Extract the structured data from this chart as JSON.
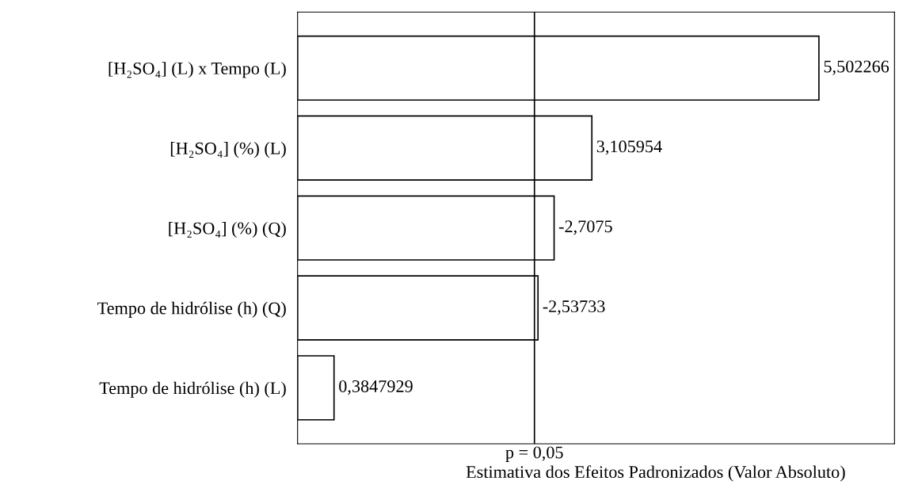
{
  "chart_data": {
    "type": "bar",
    "orientation": "horizontal",
    "xlabel": "Estimativa dos Efeitos Padronizados (Valor Absoluto)",
    "categories": [
      "[H₂SO₄] (L) x Tempo (L)",
      "[H₂SO₄] (%) (L)",
      "[H₂SO₄] (%) (Q)",
      "Tempo de hidrólise (h) (Q)",
      "Tempo de hidrólise (h) (L)"
    ],
    "values": [
      5.502266,
      3.105954,
      2.7075,
      2.53733,
      0.3847929
    ],
    "value_labels": [
      "5,502266",
      "3,105954",
      "-2,7075",
      "-2,53733",
      "0,3847929"
    ],
    "color": "#ffffff",
    "xlim": [
      0,
      6.3
    ],
    "tick_labels": "y",
    "grid": false,
    "annotations": [
      "p = 0,05"
    ],
    "ref_lines": [
      {
        "axis": "x",
        "value": 2.5,
        "color": "#000000"
      }
    ]
  }
}
